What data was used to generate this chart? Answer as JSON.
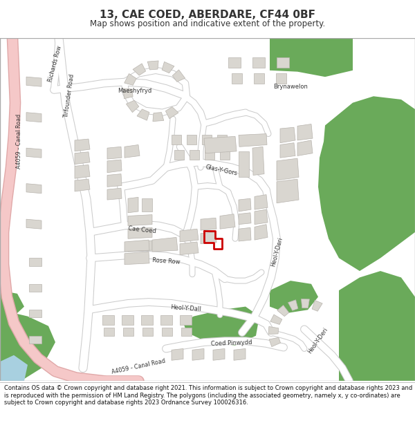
{
  "title": "13, CAE COED, ABERDARE, CF44 0BF",
  "subtitle": "Map shows position and indicative extent of the property.",
  "footer": "Contains OS data © Crown copyright and database right 2021. This information is subject to Crown copyright and database rights 2023 and is reproduced with the permission of HM Land Registry. The polygons (including the associated geometry, namely x, y co-ordinates) are subject to Crown copyright and database rights 2023 Ordnance Survey 100026316.",
  "map_bg": "#f2f0ed",
  "road_color": "#ffffff",
  "road_outline": "#d0ccc8",
  "green_color": "#6aaa5a",
  "building_color": "#d9d6d0",
  "building_outline": "#b8b4ae",
  "a_road_color": "#f5c8c8",
  "a_road_outline": "#e0a0a0",
  "highlight_color": "#cc0000",
  "water_color": "#a8d0e0",
  "text_color": "#333333",
  "title_fontsize": 11,
  "subtitle_fontsize": 8.5,
  "footer_fontsize": 6.0,
  "label_fontsize": 6.2
}
